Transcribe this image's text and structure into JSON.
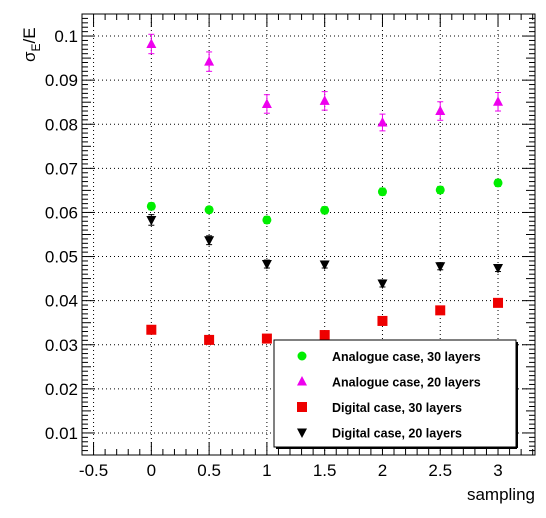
{
  "chart_data": {
    "type": "scatter",
    "xlabel": "sampling",
    "ylabel_main": "σ",
    "ylabel_sub": "E",
    "ylabel_tail": "/E",
    "xlim": [
      -0.6,
      3.32
    ],
    "ylim": [
      0.005,
      0.105
    ],
    "x_ticks": [
      -0.5,
      0,
      0.5,
      1,
      1.5,
      2,
      2.5,
      3
    ],
    "x_tick_labels": [
      "-0.5",
      "0",
      "0.5",
      "1",
      "1.5",
      "2",
      "2.5",
      "3"
    ],
    "y_ticks": [
      0.01,
      0.02,
      0.03,
      0.04,
      0.05,
      0.06,
      0.07,
      0.08,
      0.09,
      0.1
    ],
    "y_tick_labels": [
      "0.01",
      "0.02",
      "0.03",
      "0.04",
      "0.05",
      "0.06",
      "0.07",
      "0.08",
      "0.09",
      "0.1"
    ],
    "grid": true,
    "legend_position": "bottom-right",
    "series": [
      {
        "name": "Analogue case, 30 layers",
        "marker": "circle",
        "color": "#00ee00",
        "x": [
          0,
          0.5,
          1,
          1.5,
          2,
          2.5,
          3
        ],
        "y": [
          0.0614,
          0.0606,
          0.0583,
          0.0605,
          0.0647,
          0.0651,
          0.0667
        ],
        "err": [
          0.0008,
          0.0007,
          0.0008,
          0.0008,
          0.0008,
          0.0008,
          0.0008
        ]
      },
      {
        "name": "Analogue case, 20 layers",
        "marker": "triangle-up",
        "color": "#ee00ee",
        "x": [
          0,
          0.5,
          1,
          1.5,
          2,
          2.5,
          3
        ],
        "y": [
          0.0982,
          0.0942,
          0.0846,
          0.0853,
          0.0804,
          0.083,
          0.0851
        ],
        "err": [
          0.0022,
          0.0022,
          0.0021,
          0.0021,
          0.0019,
          0.0021,
          0.0021
        ]
      },
      {
        "name": "Digital case, 30 layers",
        "marker": "square",
        "color": "#ee0000",
        "x": [
          0,
          0.5,
          1,
          1.5,
          2,
          2.5,
          3
        ],
        "y": [
          0.0334,
          0.0311,
          0.0314,
          0.0322,
          0.0354,
          0.0378,
          0.0395
        ],
        "err": [
          0.0003,
          0.0003,
          0.0003,
          0.0003,
          0.0003,
          0.0003,
          0.0003
        ]
      },
      {
        "name": "Digital case, 20 layers",
        "marker": "triangle-down",
        "color": "#000000",
        "x": [
          0,
          0.5,
          1,
          1.5,
          2,
          2.5,
          3
        ],
        "y": [
          0.0583,
          0.0537,
          0.0483,
          0.0482,
          0.0439,
          0.0478,
          0.0474
        ],
        "err": [
          0.0012,
          0.001,
          0.0009,
          0.0008,
          0.0008,
          0.0008,
          0.0008
        ]
      }
    ]
  }
}
